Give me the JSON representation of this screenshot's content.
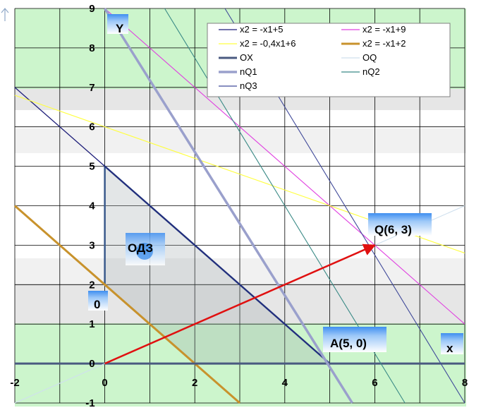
{
  "chart_data": {
    "type": "line",
    "xlim": [
      -2,
      8
    ],
    "ylim": [
      -1,
      9
    ],
    "x_ticks": [
      "-2",
      "0",
      "2",
      "4",
      "6",
      "8"
    ],
    "y_ticks": [
      "-1",
      "0",
      "1",
      "2",
      "3",
      "4",
      "5",
      "6",
      "7",
      "8",
      "9"
    ],
    "grid": true,
    "legend_position": "top-right",
    "series": [
      {
        "name": "x2 = -x1+5",
        "color": "#1f1f7a",
        "points": [
          [
            -2,
            7
          ],
          [
            5,
            0
          ]
        ]
      },
      {
        "name": "x2 = -x1+9",
        "color": "#e040e0",
        "points": [
          [
            0,
            9
          ],
          [
            8,
            1
          ]
        ]
      },
      {
        "name": "x2 = -0,4x1+6",
        "color": "#ffff40",
        "points": [
          [
            -2,
            6.8
          ],
          [
            8,
            2.8
          ]
        ]
      },
      {
        "name": "x2 = -x1+2",
        "color": "#c8922c",
        "points": [
          [
            -2,
            4
          ],
          [
            3,
            -1
          ]
        ]
      },
      {
        "name": "OX",
        "color": "#4a5a80",
        "points": [
          [
            -2,
            0
          ],
          [
            8,
            0
          ]
        ]
      },
      {
        "name": "OQ",
        "color": "#cfe0ee",
        "points": [
          [
            -2,
            -1
          ],
          [
            8,
            4
          ]
        ]
      },
      {
        "name": "nQ1",
        "color": "#9aa0cc",
        "points": [
          [
            0,
            9
          ],
          [
            5.5,
            -1
          ]
        ]
      },
      {
        "name": "nQ2",
        "color": "#3a8a86",
        "points": [
          [
            1.33,
            9
          ],
          [
            6.67,
            -1
          ]
        ]
      },
      {
        "name": "nQ3",
        "color": "#404a9a",
        "points": [
          [
            2.67,
            9
          ],
          [
            8,
            -1
          ]
        ]
      }
    ],
    "region_odz": [
      [
        0,
        2
      ],
      [
        0,
        5
      ],
      [
        5,
        0
      ],
      [
        2,
        0
      ]
    ],
    "vector": {
      "from": [
        0,
        0
      ],
      "to": [
        6,
        3
      ],
      "color": "#e01010"
    },
    "annotations": {
      "q_label": "Q(6, 3)",
      "a_label": "A(5, 0)",
      "odz_label": "ОДЗ",
      "origin_label": "0",
      "y_axis_label": "Y",
      "x_axis_label": "x"
    }
  }
}
